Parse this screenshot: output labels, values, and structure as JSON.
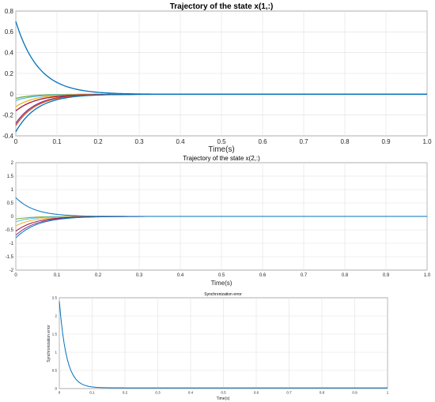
{
  "chart_data": [
    {
      "type": "line",
      "title": "Trajectory of the state x(1,:)",
      "xlabel": "Time(s)",
      "ylabel": "",
      "xlim": [
        0,
        1
      ],
      "ylim": [
        -0.4,
        0.8
      ],
      "xticks": [
        "0",
        "0.1",
        "0.2",
        "0.3",
        "0.4",
        "0.5",
        "0.6",
        "0.7",
        "0.8",
        "0.9",
        "1.0"
      ],
      "yticks": [
        "-0.4",
        "-0.2",
        "0",
        "0.2",
        "0.4",
        "0.6",
        "0.8"
      ],
      "grid": true,
      "series": [
        {
          "color": "#0072bd",
          "initial": 0.7,
          "tau": 0.055,
          "values_note": "exponential decay to 0"
        },
        {
          "color": "#77ac30",
          "initial": -0.04,
          "tau": 0.04
        },
        {
          "color": "#4dbeee",
          "initial": -0.06,
          "tau": 0.045
        },
        {
          "color": "#edb120",
          "initial": -0.12,
          "tau": 0.045
        },
        {
          "color": "#a2142f",
          "initial": -0.16,
          "tau": 0.05
        },
        {
          "color": "#7e2f8e",
          "initial": -0.28,
          "tau": 0.048
        },
        {
          "color": "#d95319",
          "initial": -0.3,
          "tau": 0.05
        },
        {
          "color": "#0072bd",
          "initial": -0.36,
          "tau": 0.052
        }
      ]
    },
    {
      "type": "line",
      "title": "Trajectory of the state x(2,:)",
      "xlabel": "Time(s)",
      "ylabel": "",
      "xlim": [
        0,
        1
      ],
      "ylim": [
        -2,
        2
      ],
      "xticks": [
        "0",
        "0.1",
        "0.2",
        "0.3",
        "0.4",
        "0.5",
        "0.6",
        "0.7",
        "0.8",
        "0.9",
        "1.0"
      ],
      "yticks": [
        "-2",
        "-1.5",
        "-1",
        "-0.5",
        "0",
        "0.5",
        "1",
        "1.5",
        "2"
      ],
      "grid": true,
      "series": [
        {
          "color": "#0072bd",
          "initial": 0.7,
          "tau": 0.045
        },
        {
          "color": "#77ac30",
          "initial": -0.1,
          "tau": 0.04
        },
        {
          "color": "#4dbeee",
          "initial": -0.2,
          "tau": 0.04
        },
        {
          "color": "#edb120",
          "initial": -0.35,
          "tau": 0.045
        },
        {
          "color": "#a2142f",
          "initial": -0.55,
          "tau": 0.048
        },
        {
          "color": "#7e2f8e",
          "initial": -0.7,
          "tau": 0.05
        },
        {
          "color": "#0072bd",
          "initial": -0.8,
          "tau": 0.052
        }
      ]
    },
    {
      "type": "line",
      "title": "Synchronization error",
      "xlabel": "Time(s)",
      "ylabel": "Synchronization error",
      "xlim": [
        0,
        1
      ],
      "ylim": [
        0,
        2.5
      ],
      "xticks": [
        "0",
        "0.1",
        "0.2",
        "0.3",
        "0.4",
        "0.5",
        "0.6",
        "0.7",
        "0.8",
        "0.9",
        "1"
      ],
      "yticks": [
        "0",
        "0.5",
        "1",
        "1.5",
        "2",
        "2.5"
      ],
      "grid": true,
      "series": [
        {
          "color": "#0072bd",
          "initial": 2.4,
          "tau": 0.022,
          "floor": 0.02
        }
      ]
    }
  ]
}
